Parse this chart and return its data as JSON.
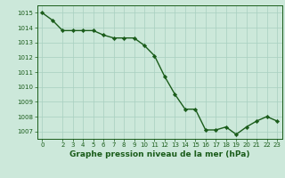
{
  "x": [
    0,
    1,
    2,
    3,
    4,
    5,
    6,
    7,
    8,
    9,
    10,
    11,
    12,
    13,
    14,
    15,
    16,
    17,
    18,
    19,
    20,
    21,
    22,
    23
  ],
  "y": [
    1015.0,
    1014.5,
    1013.8,
    1013.8,
    1013.8,
    1013.8,
    1013.5,
    1013.3,
    1013.3,
    1013.3,
    1012.8,
    1012.1,
    1010.7,
    1009.5,
    1008.5,
    1008.5,
    1007.1,
    1007.1,
    1007.3,
    1006.8,
    1007.3,
    1007.7,
    1008.0,
    1007.7
  ],
  "line_color": "#1a5c1a",
  "marker_color": "#1a5c1a",
  "bg_color": "#cce8da",
  "grid_color": "#a8cfc0",
  "xlabel": "Graphe pression niveau de la mer (hPa)",
  "xlabel_color": "#1a5c1a",
  "tick_color": "#1a5c1a",
  "ylim": [
    1006.5,
    1015.5
  ],
  "yticks": [
    1007,
    1008,
    1009,
    1010,
    1011,
    1012,
    1013,
    1014,
    1015
  ],
  "xticks": [
    0,
    2,
    3,
    4,
    5,
    6,
    7,
    8,
    9,
    10,
    11,
    12,
    13,
    14,
    15,
    16,
    17,
    18,
    19,
    20,
    21,
    22,
    23
  ],
  "xlim": [
    -0.5,
    23.5
  ],
  "tick_fontsize": 5.0,
  "xlabel_fontsize": 6.5
}
